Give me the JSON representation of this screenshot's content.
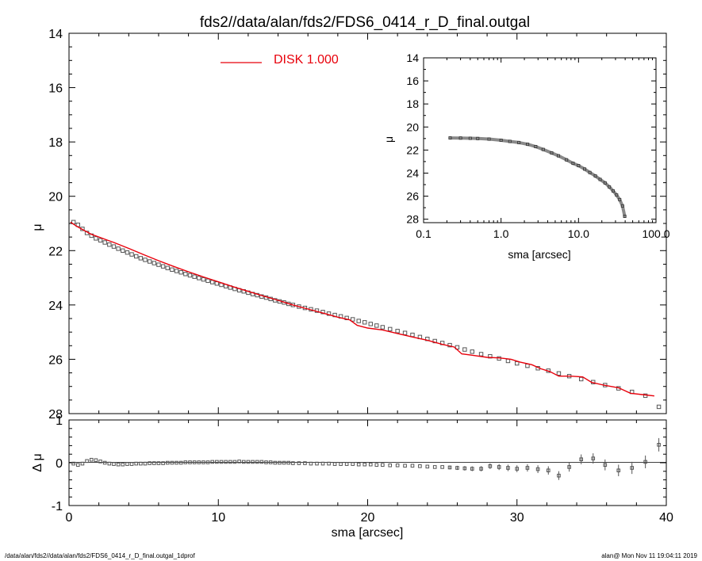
{
  "title": "fds2//data/alan/fds2/FDS6_0414_r_D_final.outgal",
  "footer_left": "/data/alan/fds2//data/alan/fds2/FDS6_0414_r_D_final.outgal_1dprof",
  "footer_right": "alan@  Mon Nov 11 19:04:11 2019",
  "colors": {
    "model": "#e8000b",
    "data": "#555555",
    "axis": "#000000"
  },
  "chart_data": [
    {
      "type": "scatter",
      "panel": "main",
      "xlabel": "",
      "ylabel": "μ",
      "xlim": [
        0,
        40
      ],
      "ylim": [
        28,
        14
      ],
      "y_inverted": true,
      "yticks": [
        14,
        16,
        18,
        20,
        22,
        24,
        26,
        28
      ],
      "legend": {
        "label": "DISK  1.000",
        "position": "top-center"
      },
      "series": [
        {
          "kind": "data",
          "x": [
            0.3,
            0.6,
            0.9,
            1.2,
            1.5,
            1.8,
            2.1,
            2.4,
            2.7,
            3.0,
            3.3,
            3.6,
            3.9,
            4.2,
            4.5,
            4.8,
            5.1,
            5.4,
            5.7,
            6.0,
            6.3,
            6.6,
            6.9,
            7.2,
            7.5,
            7.8,
            8.1,
            8.4,
            8.7,
            9.0,
            9.3,
            9.6,
            9.9,
            10.2,
            10.5,
            10.8,
            11.1,
            11.4,
            11.7,
            12.0,
            12.3,
            12.6,
            12.9,
            13.2,
            13.5,
            13.8,
            14.1,
            14.4,
            14.7,
            15.0,
            15.4,
            15.8,
            16.2,
            16.6,
            17.0,
            17.4,
            17.8,
            18.2,
            18.6,
            19.0,
            19.4,
            19.8,
            20.2,
            20.6,
            21.0,
            21.5,
            22.0,
            22.5,
            23.0,
            23.5,
            24.0,
            24.5,
            25.0,
            25.5,
            26.0,
            26.5,
            27.0,
            27.6,
            28.2,
            28.8,
            29.4,
            30.0,
            30.7,
            31.4,
            32.1,
            32.8,
            33.5,
            34.3,
            35.1,
            35.9,
            36.8,
            37.7,
            38.6,
            39.5
          ],
          "y": [
            20.95,
            21.05,
            21.2,
            21.35,
            21.45,
            21.55,
            21.62,
            21.7,
            21.78,
            21.85,
            21.93,
            22.0,
            22.07,
            22.14,
            22.21,
            22.28,
            22.34,
            22.4,
            22.46,
            22.52,
            22.58,
            22.64,
            22.7,
            22.75,
            22.8,
            22.86,
            22.91,
            22.96,
            23.01,
            23.06,
            23.11,
            23.16,
            23.21,
            23.26,
            23.31,
            23.36,
            23.41,
            23.46,
            23.5,
            23.55,
            23.6,
            23.64,
            23.69,
            23.73,
            23.78,
            23.83,
            23.87,
            23.91,
            23.96,
            24.0,
            24.06,
            24.11,
            24.16,
            24.21,
            24.26,
            24.32,
            24.37,
            24.42,
            24.48,
            24.53,
            24.59,
            24.64,
            24.7,
            24.76,
            24.82,
            24.89,
            24.96,
            25.03,
            25.1,
            25.18,
            25.25,
            25.33,
            25.4,
            25.48,
            25.56,
            25.64,
            25.72,
            25.81,
            25.89,
            25.97,
            26.06,
            26.15,
            26.24,
            26.33,
            26.42,
            26.52,
            26.62,
            26.73,
            26.84,
            26.95,
            27.07,
            27.2,
            27.34,
            27.75
          ]
        },
        {
          "kind": "model",
          "name": "DISK  1.000",
          "x": [
            0.1,
            0.5,
            1.0,
            1.5,
            2.0,
            2.5,
            3.0,
            4.0,
            5.0,
            6.0,
            7.0,
            8.0,
            9.0,
            10.0,
            11.0,
            12.0,
            13.0,
            14.0,
            15.0,
            16.0,
            17.0,
            18.0,
            18.8,
            19.3,
            20.0,
            21.0,
            22.0,
            23.0,
            24.0,
            25.0,
            25.8,
            26.3,
            27.0,
            28.0,
            28.8,
            29.6,
            30.2,
            31.0,
            31.6,
            32.2,
            32.8,
            33.6,
            34.4,
            35.0,
            35.8,
            36.8,
            37.6,
            38.4,
            39.2
          ],
          "y": [
            20.95,
            21.1,
            21.25,
            21.4,
            21.5,
            21.6,
            21.7,
            21.92,
            22.15,
            22.37,
            22.58,
            22.78,
            22.97,
            23.15,
            23.33,
            23.5,
            23.67,
            23.83,
            24.0,
            24.15,
            24.3,
            24.45,
            24.55,
            24.75,
            24.85,
            24.92,
            25.05,
            25.18,
            25.3,
            25.45,
            25.55,
            25.8,
            25.85,
            25.93,
            25.95,
            26.0,
            26.1,
            26.2,
            26.35,
            26.45,
            26.62,
            26.62,
            26.65,
            26.85,
            26.95,
            27.05,
            27.25,
            27.3,
            27.35
          ]
        }
      ]
    },
    {
      "type": "scatter",
      "panel": "residual",
      "xlabel": "sma [arcsec]",
      "ylabel": "Δ μ",
      "xlim": [
        0,
        40
      ],
      "ylim": [
        -1,
        1
      ],
      "xticks": [
        0,
        10,
        20,
        30,
        40
      ],
      "yticks": [
        -1,
        0,
        1
      ],
      "series": [
        {
          "kind": "residual",
          "x": [
            0.3,
            0.6,
            0.9,
            1.2,
            1.5,
            1.8,
            2.1,
            2.4,
            2.7,
            3.0,
            3.3,
            3.6,
            3.9,
            4.2,
            4.5,
            4.8,
            5.1,
            5.4,
            5.7,
            6.0,
            6.3,
            6.6,
            6.9,
            7.2,
            7.5,
            7.8,
            8.1,
            8.4,
            8.7,
            9.0,
            9.3,
            9.6,
            9.9,
            10.2,
            10.5,
            10.8,
            11.1,
            11.4,
            11.7,
            12.0,
            12.3,
            12.6,
            12.9,
            13.2,
            13.5,
            13.8,
            14.1,
            14.4,
            14.7,
            15.0,
            15.4,
            15.8,
            16.2,
            16.6,
            17.0,
            17.4,
            17.8,
            18.2,
            18.6,
            19.0,
            19.4,
            19.8,
            20.2,
            20.6,
            21.0,
            21.5,
            22.0,
            22.5,
            23.0,
            23.5,
            24.0,
            24.5,
            25.0,
            25.5,
            26.0,
            26.5,
            27.0,
            27.6,
            28.2,
            28.8,
            29.4,
            30.0,
            30.7,
            31.4,
            32.1,
            32.8,
            33.5,
            34.3,
            35.1,
            35.9,
            36.8,
            37.7,
            38.6,
            39.5
          ],
          "y": [
            -0.02,
            -0.05,
            -0.02,
            0.04,
            0.07,
            0.06,
            0.03,
            0.0,
            -0.02,
            -0.03,
            -0.04,
            -0.04,
            -0.03,
            -0.03,
            -0.02,
            -0.02,
            -0.02,
            -0.01,
            -0.01,
            -0.01,
            -0.01,
            0.0,
            0.0,
            0.0,
            0.0,
            0.01,
            0.01,
            0.01,
            0.01,
            0.01,
            0.01,
            0.02,
            0.02,
            0.02,
            0.02,
            0.02,
            0.02,
            0.03,
            0.02,
            0.02,
            0.02,
            0.02,
            0.02,
            0.01,
            0.01,
            0.0,
            0.0,
            0.0,
            0.0,
            -0.01,
            -0.01,
            -0.01,
            -0.02,
            -0.02,
            -0.02,
            -0.02,
            -0.03,
            -0.03,
            -0.03,
            -0.03,
            -0.04,
            -0.04,
            -0.04,
            -0.05,
            -0.05,
            -0.06,
            -0.06,
            -0.07,
            -0.07,
            -0.08,
            -0.09,
            -0.1,
            -0.1,
            -0.11,
            -0.12,
            -0.13,
            -0.14,
            -0.14,
            -0.08,
            -0.1,
            -0.12,
            -0.14,
            -0.12,
            -0.15,
            -0.18,
            -0.3,
            -0.1,
            0.08,
            0.1,
            -0.05,
            -0.18,
            -0.12,
            0.02,
            0.42
          ]
        }
      ]
    },
    {
      "type": "scatter",
      "panel": "inset",
      "xlabel": "sma [arcsec]",
      "ylabel": "μ",
      "x_scale": "log",
      "xlim": [
        0.1,
        100
      ],
      "ylim": [
        28.3,
        14
      ],
      "y_inverted": true,
      "xtick_labels": [
        "0.1",
        "1.0",
        "10.0",
        "100.0"
      ],
      "yticks": [
        14,
        16,
        18,
        20,
        22,
        24,
        26,
        28
      ],
      "series": [
        {
          "kind": "data",
          "x": [
            0.22,
            0.3,
            0.4,
            0.5,
            0.7,
            1.0,
            1.3,
            1.7,
            2.2,
            2.8,
            3.5,
            4.5,
            5.5,
            7.0,
            8.5,
            10.0,
            12.0,
            14.0,
            16.5,
            19.0,
            22.0,
            25.0,
            28.0,
            31.0,
            34.0,
            37.0,
            39.5
          ],
          "y": [
            20.95,
            20.96,
            20.98,
            21.0,
            21.05,
            21.15,
            21.25,
            21.35,
            21.5,
            21.7,
            21.95,
            22.25,
            22.5,
            22.85,
            23.15,
            23.35,
            23.65,
            23.95,
            24.25,
            24.55,
            24.85,
            25.2,
            25.55,
            25.9,
            26.3,
            26.85,
            27.75
          ]
        }
      ]
    }
  ]
}
